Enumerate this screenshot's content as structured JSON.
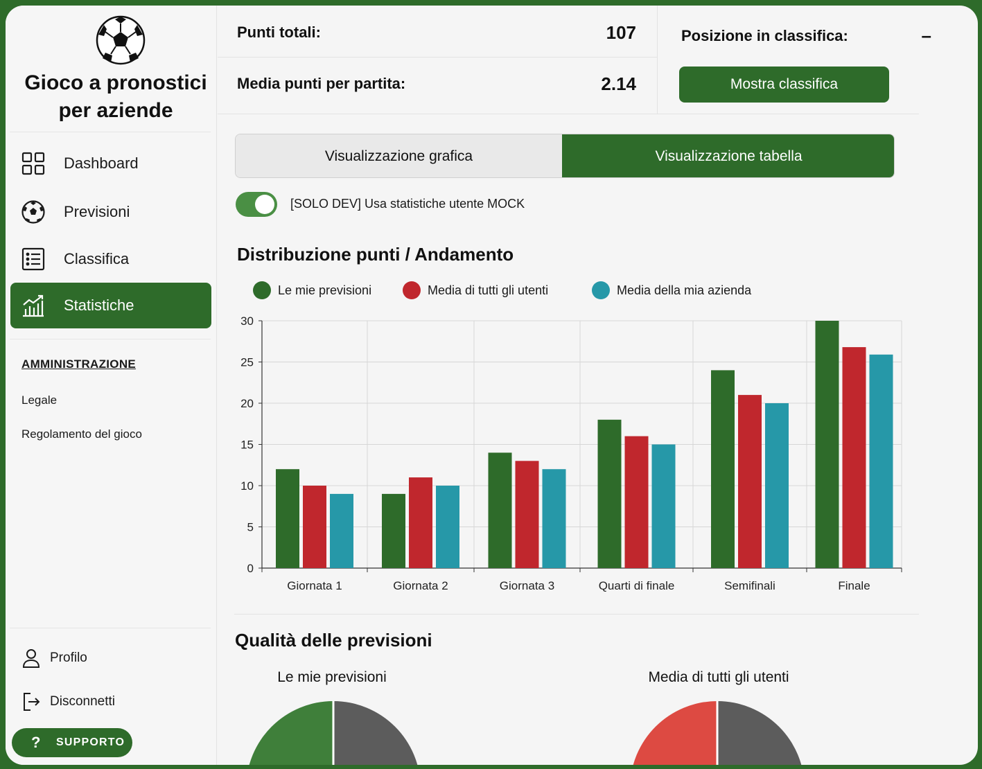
{
  "app": {
    "title_line1": "Gioco a pronostici",
    "title_line2": "per aziende"
  },
  "sidebar": {
    "items": [
      {
        "label": "Dashboard",
        "icon": "grid-icon"
      },
      {
        "label": "Previsioni",
        "icon": "soccer-ball-icon"
      },
      {
        "label": "Classifica",
        "icon": "list-icon"
      },
      {
        "label": "Statistiche",
        "icon": "chart-icon",
        "active": true
      }
    ],
    "admin_title": "AMMINISTRAZIONE",
    "admin_links": [
      "Legale",
      "Regolamento del gioco"
    ],
    "bottom": [
      {
        "label": "Profilo",
        "icon": "user-icon"
      },
      {
        "label": "Disconnetti",
        "icon": "logout-icon"
      }
    ],
    "support_label": "SUPPORTO"
  },
  "stats": {
    "total_points_label": "Punti totali:",
    "total_points_value": "107",
    "avg_label": "Media punti per partita:",
    "avg_value": "2.14",
    "rank_label": "Posizione in classifica:",
    "rank_value": "–",
    "show_rank_button": "Mostra classifica"
  },
  "view_tabs": [
    "Visualizzazione grafica",
    "Visualizzazione tabella"
  ],
  "dev_toggle": {
    "label": "[SOLO DEV] Usa statistiche utente MOCK",
    "on": true
  },
  "section_points": "Distribuzione punti / Andamento",
  "section_quality": "Qualità delle previsioni",
  "colors": {
    "green": "#2e6b2a",
    "red": "#c0272d",
    "teal": "#2698a8"
  },
  "chart_data": {
    "type": "bar",
    "title": "Distribuzione punti / Andamento",
    "categories": [
      "Giornata 1",
      "Giornata 2",
      "Giornata 3",
      "Quarti di finale",
      "Semifinali",
      "Finale"
    ],
    "series": [
      {
        "name": "Le mie previsioni",
        "color": "#2e6b2a",
        "values": [
          12,
          9,
          14,
          18,
          24,
          30
        ]
      },
      {
        "name": "Media di tutti gli utenti",
        "color": "#c0272d",
        "values": [
          10,
          11,
          13,
          16,
          21,
          26.8
        ]
      },
      {
        "name": "Media della mia azienda",
        "color": "#2698a8",
        "values": [
          9,
          10,
          12,
          15,
          20,
          25.9
        ]
      }
    ],
    "ylim": [
      0,
      30
    ],
    "yticks": [
      0,
      5,
      10,
      15,
      20,
      25,
      30
    ],
    "grid": true,
    "legend": "top"
  },
  "pies": {
    "left_title": "Le mie previsioni",
    "right_title": "Media di tutti gli utenti"
  }
}
